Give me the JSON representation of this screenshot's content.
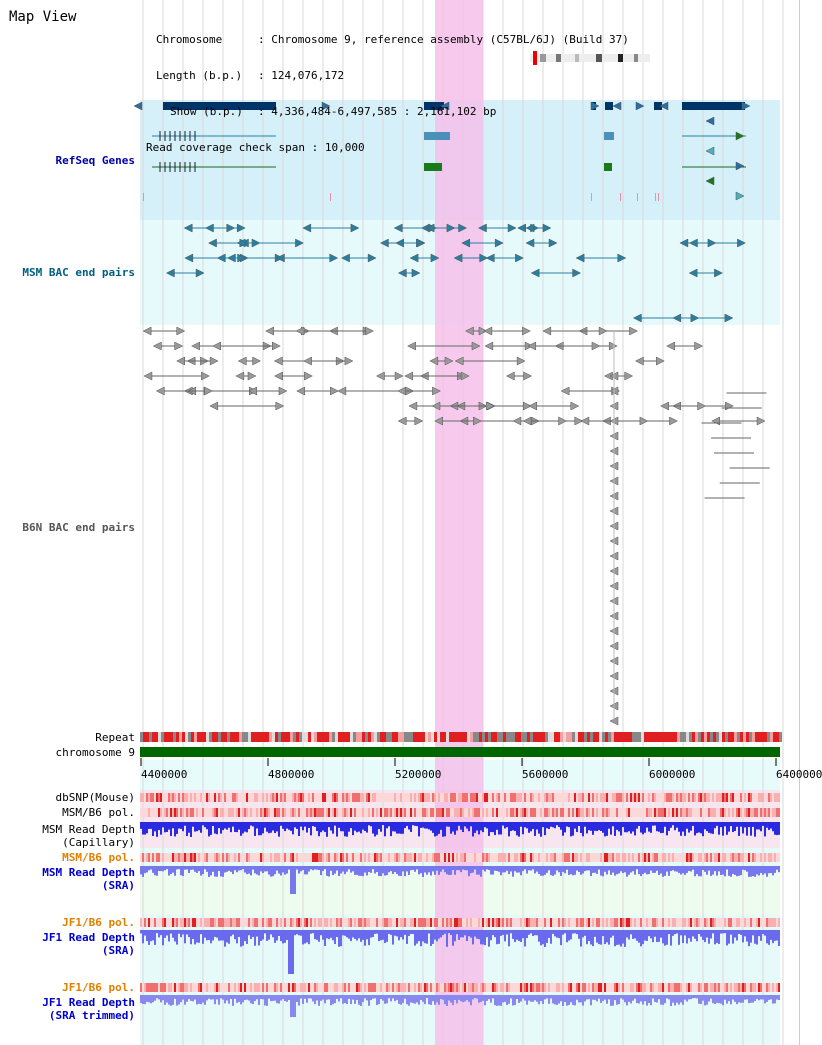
{
  "page": {
    "title": "Map View"
  },
  "info": {
    "chromosome_label": "Chromosome",
    "chromosome_value": "Chromosome 9, reference assembly (C57BL/6J) (Build 37)",
    "length_label": "Length (b.p.)",
    "length_value": "124,076,172",
    "show_label": "Show (b.p.)",
    "show_value": "4,336,484-6,497,585 : 2,161,102 bp",
    "coverage_label": "Read coverage check span",
    "coverage_value": "10,000"
  },
  "tracks": {
    "refseq": "RefSeq Genes",
    "msm_bac": "MSM BAC end pairs",
    "b6n_bac": "B6N BAC end pairs",
    "repeat": "Repeat",
    "chromosome": "chromosome 9",
    "dbsnp": "dbSNP(Mouse)",
    "msm_b6_pol_1": "MSM/B6 pol.",
    "msm_read_depth_cap_1": "MSM Read Depth",
    "msm_read_depth_cap_2": "(Capillary)",
    "msm_b6_pol_2": "MSM/B6 pol.",
    "msm_read_depth_sra_1": "MSM Read Depth",
    "msm_read_depth_sra_2": "(SRA)",
    "jf1_b6_pol_1": "JF1/B6 pol.",
    "jf1_read_depth_sra_1": "JF1 Read Depth",
    "jf1_read_depth_sra_2": "(SRA)",
    "jf1_b6_pol_2": "JF1/B6 pol.",
    "jf1_read_depth_trim_1": "JF1 Read Depth",
    "jf1_read_depth_trim_2": "(SRA trimmed)"
  },
  "axis": {
    "ticks": [
      "4400000",
      "4800000",
      "5200000",
      "5600000",
      "6000000",
      "6400000"
    ]
  },
  "colors": {
    "refseq_label": "#0000aa",
    "msm_label": "#006080",
    "b6n_label": "#555555",
    "orange_label": "#e08000",
    "blue_label": "#0000cc",
    "highlight": "#f5c0ea",
    "chromosome_bar": "#006600"
  }
}
